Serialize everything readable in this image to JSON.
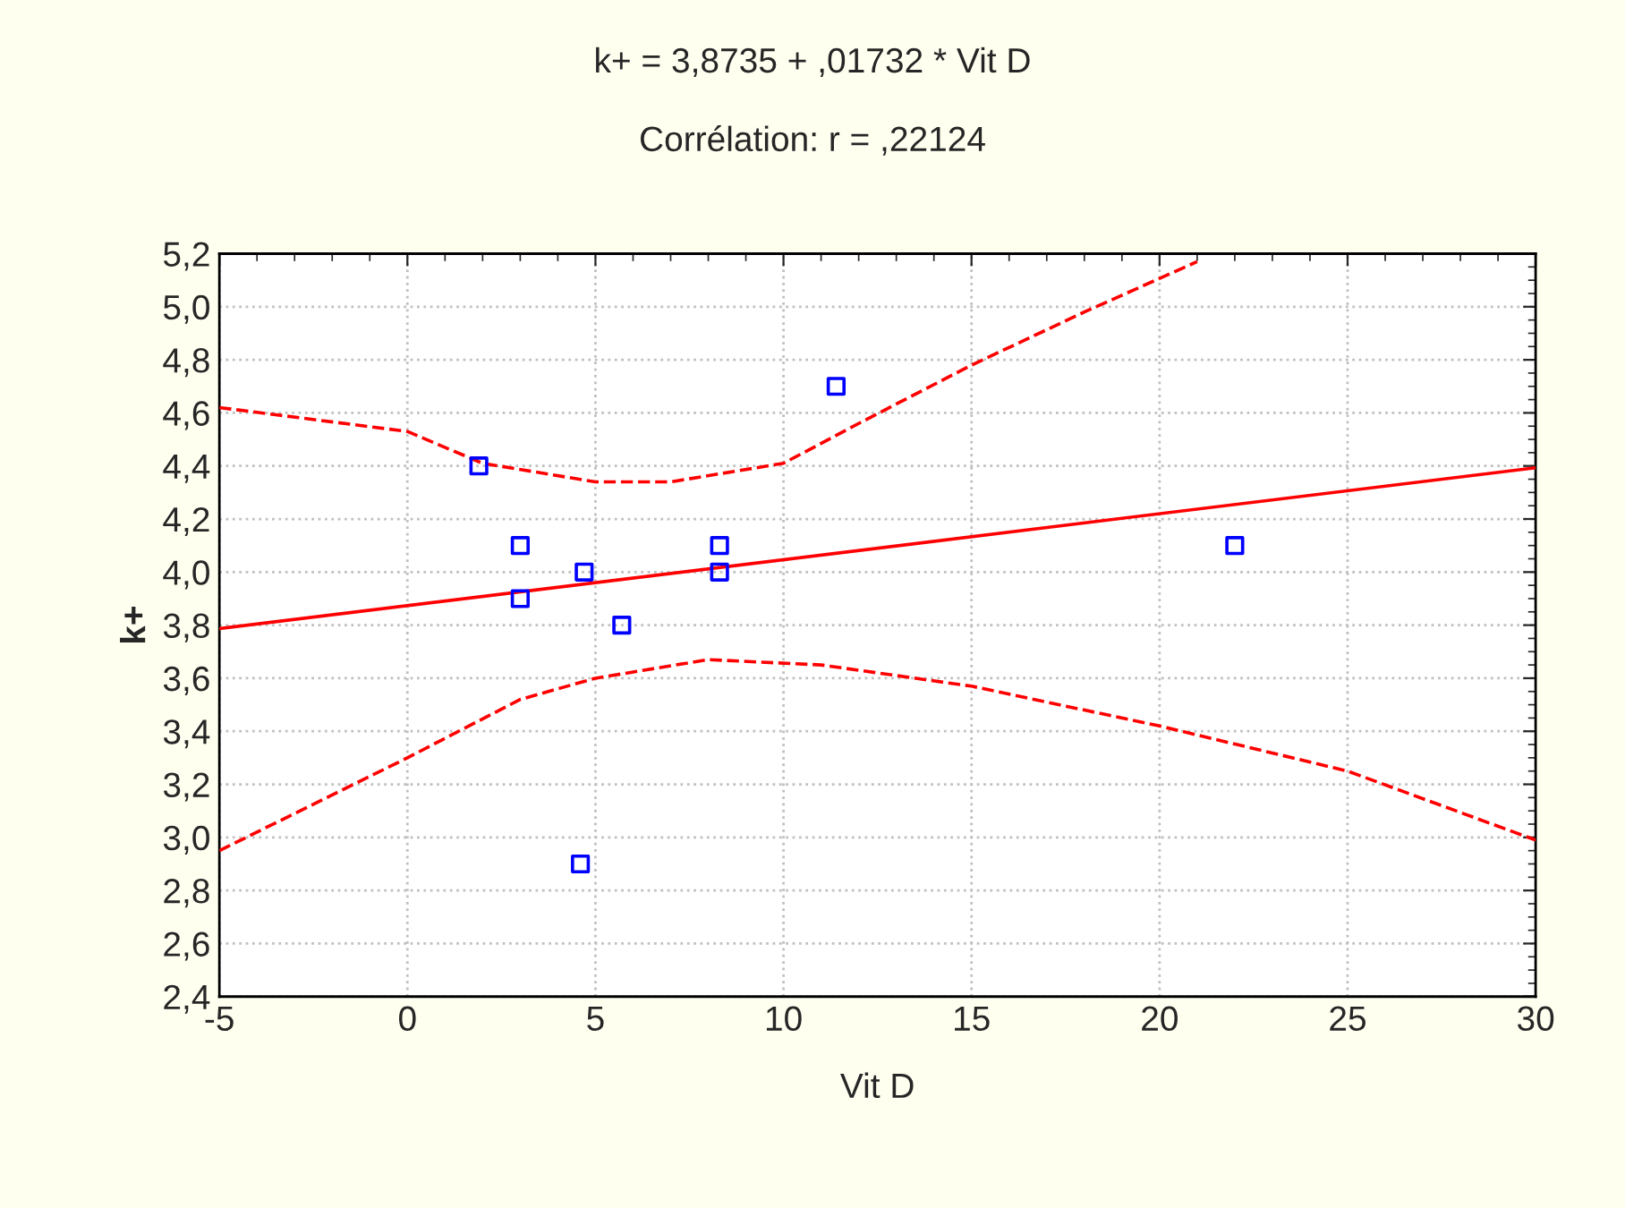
{
  "chart_data": {
    "type": "scatter",
    "title": "k+ = 3,8735 + ,01732 * Vit D",
    "subtitle": "Corrélation: r = ,22124",
    "xlabel": "Vit D",
    "ylabel": "k+",
    "x": [
      1.9,
      3.0,
      3.0,
      4.7,
      4.6,
      5.7,
      8.3,
      8.3,
      11.4,
      22.0
    ],
    "values": [
      4.4,
      4.1,
      3.9,
      4.0,
      2.9,
      3.8,
      4.1,
      4.0,
      4.7,
      4.1
    ],
    "color": "#0000ff",
    "marker": "square",
    "series": [
      {
        "type": "line",
        "color": "#ff0000",
        "marker": "none",
        "line_style": "solid",
        "x": [
          -5,
          30
        ],
        "values": [
          3.787,
          4.393
        ]
      },
      {
        "type": "line",
        "color": "#ff0000",
        "marker": "none",
        "line_style": "dashed",
        "x": [
          -5,
          0,
          2,
          5,
          7,
          10,
          12,
          15,
          18,
          21
        ],
        "values": [
          4.62,
          4.53,
          4.41,
          4.34,
          4.34,
          4.41,
          4.56,
          4.78,
          4.98,
          5.17
        ]
      },
      {
        "type": "line",
        "color": "#ff0000",
        "marker": "none",
        "line_style": "dashed",
        "x": [
          -5,
          0,
          3,
          5,
          8,
          11,
          15,
          20,
          25,
          30
        ],
        "values": [
          2.95,
          3.3,
          3.52,
          3.6,
          3.67,
          3.65,
          3.57,
          3.42,
          3.25,
          2.99
        ]
      }
    ],
    "xlim": [
      -5,
      30
    ],
    "xticks": [
      -5,
      0,
      5,
      10,
      15,
      20,
      25,
      30
    ],
    "ylim": [
      2.4,
      5.2
    ],
    "yticks": [
      {
        "value": 2.4,
        "label": "2,4"
      },
      {
        "value": 2.6,
        "label": "2,6"
      },
      {
        "value": 2.8,
        "label": "2,8"
      },
      {
        "value": 3.0,
        "label": "3,0"
      },
      {
        "value": 3.2,
        "label": "3,2"
      },
      {
        "value": 3.4,
        "label": "3,4"
      },
      {
        "value": 3.6,
        "label": "3,6"
      },
      {
        "value": 3.8,
        "label": "3,8"
      },
      {
        "value": 4.0,
        "label": "4,0"
      },
      {
        "value": 4.2,
        "label": "4,2"
      },
      {
        "value": 4.4,
        "label": "4,4"
      },
      {
        "value": 4.6,
        "label": "4,6"
      },
      {
        "value": 4.8,
        "label": "4,8"
      },
      {
        "value": 5.0,
        "label": "5,0"
      },
      {
        "value": 5.2,
        "label": "5,2"
      }
    ],
    "grid": true,
    "legend": false
  }
}
